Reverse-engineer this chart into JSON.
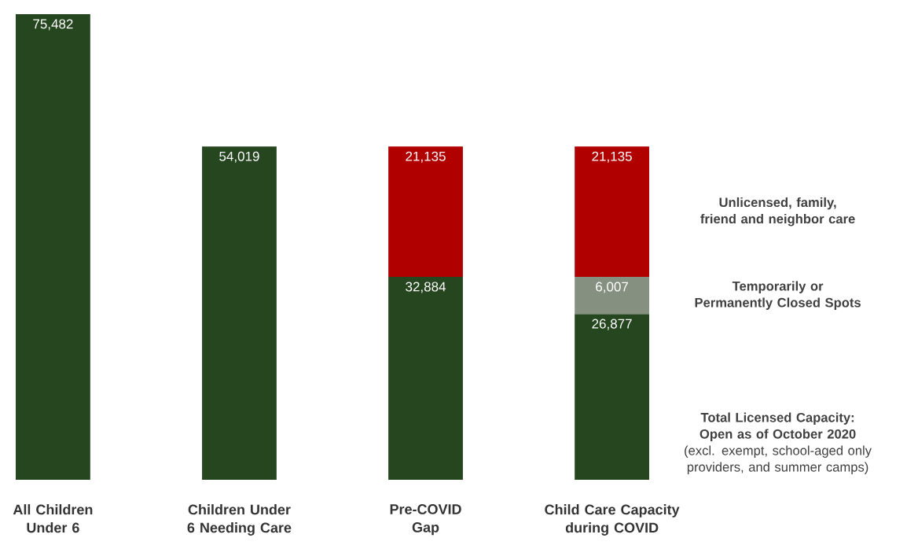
{
  "chart_data": {
    "type": "bar",
    "stacked": true,
    "categories": [
      "All Children Under 6",
      "Children Under 6 Needing Care",
      "Pre-COVID Gap",
      "Child Care Capacity during COVID"
    ],
    "series": [
      {
        "name": "**Total Licensed Capacity: Open as of October 2020** (excl. exempt, school-aged only providers, and summer camps)",
        "color": "#264620",
        "values": [
          75482,
          54019,
          32884,
          26877
        ],
        "value_labels": [
          "75,482",
          "54,019",
          "32,884",
          "26,877"
        ]
      },
      {
        "name": "Temporarily or Permanently Closed Spots",
        "color": "#859080",
        "values": [
          null,
          null,
          null,
          6007
        ],
        "value_labels": [
          null,
          null,
          null,
          "6,007"
        ]
      },
      {
        "name": "Unlicensed, family, friend and neighbor care",
        "color": "#b00000",
        "values": [
          null,
          null,
          21135,
          21135
        ],
        "value_labels": [
          null,
          null,
          "21,135",
          "21,135"
        ]
      }
    ]
  }
}
